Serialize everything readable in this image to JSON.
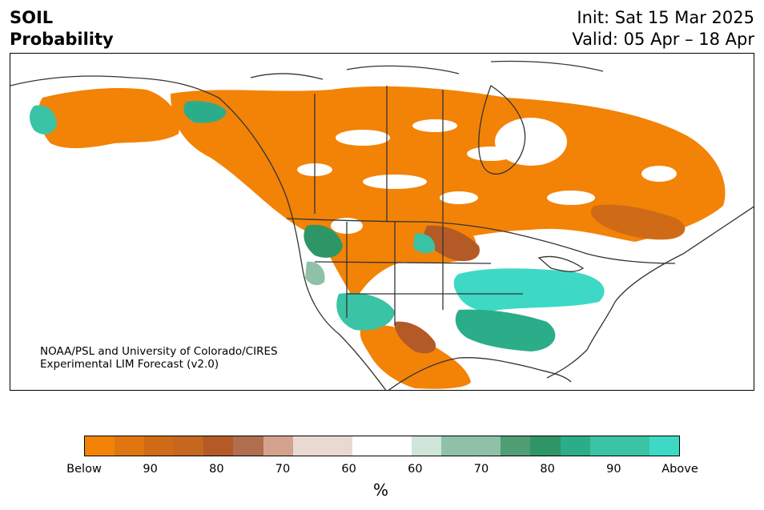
{
  "header": {
    "title_line1": "SOIL",
    "title_line2": "Probability",
    "init": "Init: Sat 15 Mar 2025",
    "valid": "Valid: 05 Apr – 18 Apr"
  },
  "credit": {
    "line1": "NOAA/PSL and University of Colorado/CIRES",
    "line2": "Experimental LIM Forecast (v2.0)"
  },
  "map": {
    "region": "North America",
    "field": "soil moisture probability",
    "dominant_below_regions": [
      "Canadian Prairies",
      "Northern Plains",
      "Ontario and Quebec",
      "Central Mexico",
      "Alaska interior"
    ],
    "dominant_above_regions": [
      "Ohio Valley",
      "Southeast US",
      "Southern Plains",
      "Interior West",
      "Coastal Alaska"
    ]
  },
  "colorbar": {
    "colors": [
      "#f28307",
      "#e0760f",
      "#cf6b16",
      "#c5671f",
      "#b35a27",
      "#b06e4f",
      "#d3a38e",
      "#e9d9d1",
      "#ffffff",
      "#cfe5da",
      "#8fc1a8",
      "#4f9e74",
      "#2e9566",
      "#2bad89",
      "#3ac3a5",
      "#3dd9c5"
    ],
    "weights": [
      1,
      1,
      1,
      1,
      1,
      1,
      1,
      2,
      2,
      1,
      2,
      1,
      1,
      1,
      2,
      1
    ],
    "tick_labels": [
      "Below",
      "90",
      "80",
      "70",
      "60",
      "60",
      "70",
      "80",
      "90",
      "Above"
    ],
    "unit": "%"
  }
}
